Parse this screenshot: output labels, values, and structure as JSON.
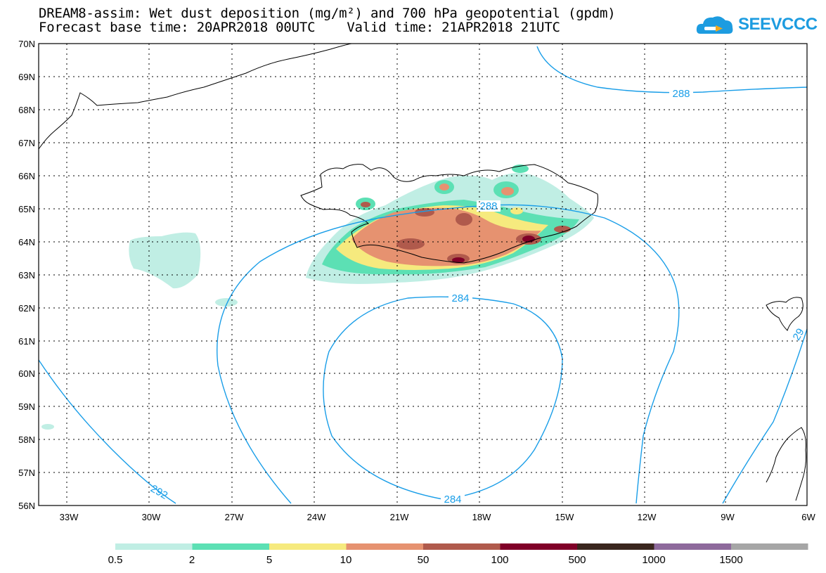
{
  "header": {
    "line1": "DREAM8-assim: Wet dust deposition (mg/m²) and 700 hPa geopotential (gpdm)",
    "line2": "Forecast base time: 20APR2018 00UTC    Valid time: 21APR2018 21UTC"
  },
  "logo": {
    "text": "SEEVCCC",
    "color": "#1d9ce0"
  },
  "map": {
    "lat_labels": [
      "70N",
      "69N",
      "68N",
      "67N",
      "66N",
      "65N",
      "64N",
      "63N",
      "62N",
      "61N",
      "60N",
      "59N",
      "58N",
      "57N",
      "56N"
    ],
    "lon_labels": [
      "33W",
      "30W",
      "27W",
      "24W",
      "21W",
      "18W",
      "15W",
      "12W",
      "9W",
      "6W"
    ],
    "grid": "dotted",
    "contour_color": "#1a9ee8",
    "contour_labels": [
      "288",
      "288",
      "284",
      "284",
      "292",
      "29"
    ]
  },
  "legend": {
    "labels": [
      "0.5",
      "2",
      "5",
      "10",
      "50",
      "100",
      "500",
      "1000",
      "1500"
    ],
    "colors": [
      "#c0eee4",
      "#5ce0b4",
      "#f6ea7e",
      "#e69270",
      "#b05a4c",
      "#800028",
      "#3a261e",
      "#8e6a9c",
      "#a6a6a6"
    ]
  }
}
